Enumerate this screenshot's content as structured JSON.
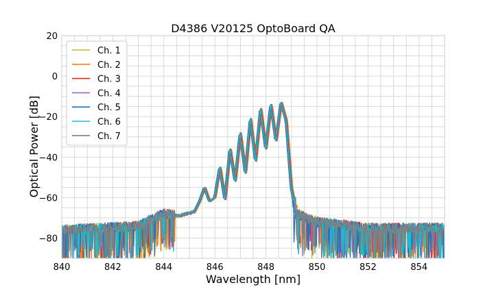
{
  "chart_data": {
    "type": "line",
    "title": "D4386 V20125 OptoBoard QA",
    "xlabel": "Wavelength [nm]",
    "ylabel": "Optical Power [dB]",
    "xlim": [
      840,
      855
    ],
    "ylim": [
      -90,
      20
    ],
    "xticks": [
      840,
      842,
      844,
      846,
      848,
      850,
      852,
      854
    ],
    "yticks": [
      -80,
      -60,
      -40,
      -20,
      0,
      20
    ],
    "grid": true,
    "legend_position": "top-left",
    "series": [
      {
        "name": "Ch. 1",
        "color": "#bcbd22",
        "shift": 0.0,
        "peak_offset": 0.0,
        "x": [
          840,
          843,
          844,
          844.6,
          845.2,
          845.4,
          845.6,
          845.8,
          846.0,
          846.2,
          846.4,
          846.6,
          846.8,
          847.0,
          847.2,
          847.4,
          847.6,
          847.8,
          848.0,
          848.2,
          848.4,
          848.6,
          848.8,
          849.0,
          849.2,
          850,
          852,
          855
        ],
        "y": [
          -76,
          -74,
          -68,
          -69,
          -67,
          -62,
          -55,
          -62,
          -60,
          -45,
          -61,
          -36,
          -52,
          -28,
          -48,
          -21,
          -42,
          -16,
          -36,
          -14,
          -32,
          -13,
          -22,
          -55,
          -68,
          -72,
          -75,
          -75
        ]
      },
      {
        "name": "Ch. 2",
        "color": "#ff7f0e",
        "shift": 0.05,
        "peak_offset": 0.5,
        "x": [
          840,
          843,
          844,
          844.6,
          845.2,
          845.4,
          845.6,
          845.8,
          846.0,
          846.2,
          846.4,
          846.6,
          846.8,
          847.0,
          847.2,
          847.4,
          847.6,
          847.8,
          848.0,
          848.2,
          848.4,
          848.6,
          848.8,
          849.0,
          849.2,
          850,
          852,
          855
        ],
        "y": [
          -76,
          -74,
          -68,
          -69,
          -67,
          -62,
          -55,
          -62,
          -60,
          -45,
          -61,
          -36,
          -52,
          -28,
          -48,
          -21,
          -42,
          -16,
          -36,
          -14,
          -32,
          -13,
          -22,
          -55,
          -68,
          -72,
          -75,
          -75
        ]
      },
      {
        "name": "Ch. 3",
        "color": "#d62728",
        "shift": 0.02,
        "peak_offset": 1.0,
        "x": [
          840,
          843,
          844,
          844.6,
          845.2,
          845.4,
          845.6,
          845.8,
          846.0,
          846.2,
          846.4,
          846.6,
          846.8,
          847.0,
          847.2,
          847.4,
          847.6,
          847.8,
          848.0,
          848.2,
          848.4,
          848.6,
          848.8,
          849.0,
          849.2,
          850,
          852,
          855
        ],
        "y": [
          -76,
          -74,
          -68,
          -69,
          -67,
          -62,
          -55,
          -62,
          -60,
          -45,
          -61,
          -36,
          -52,
          -28,
          -48,
          -21,
          -42,
          -16,
          -36,
          -14,
          -32,
          -13,
          -22,
          -55,
          -68,
          -72,
          -75,
          -75
        ]
      },
      {
        "name": "Ch. 4",
        "color": "#9467bd",
        "shift": -0.03,
        "peak_offset": 1.5,
        "x": [
          840,
          843,
          844,
          844.6,
          845.2,
          845.4,
          845.6,
          845.8,
          846.0,
          846.2,
          846.4,
          846.6,
          846.8,
          847.0,
          847.2,
          847.4,
          847.6,
          847.8,
          848.0,
          848.2,
          848.4,
          848.6,
          848.8,
          849.0,
          849.2,
          850,
          852,
          855
        ],
        "y": [
          -76,
          -74,
          -68,
          -69,
          -67,
          -62,
          -55,
          -62,
          -60,
          -45,
          -61,
          -36,
          -52,
          -28,
          -48,
          -21,
          -42,
          -16,
          -36,
          -14,
          -32,
          -13,
          -22,
          -55,
          -68,
          -72,
          -75,
          -75
        ]
      },
      {
        "name": "Ch. 5",
        "color": "#1f77b4",
        "shift": -0.05,
        "peak_offset": 0.8,
        "x": [
          840,
          843,
          844,
          844.6,
          845.2,
          845.4,
          845.6,
          845.8,
          846.0,
          846.2,
          846.4,
          846.6,
          846.8,
          847.0,
          847.2,
          847.4,
          847.6,
          847.8,
          848.0,
          848.2,
          848.4,
          848.6,
          848.8,
          849.0,
          849.2,
          850,
          852,
          855
        ],
        "y": [
          -76,
          -74,
          -68,
          -69,
          -67,
          -62,
          -55,
          -62,
          -60,
          -45,
          -61,
          -36,
          -52,
          -28,
          -48,
          -21,
          -42,
          -16,
          -36,
          -14,
          -32,
          -13,
          -22,
          -55,
          -68,
          -72,
          -75,
          -75
        ]
      },
      {
        "name": "Ch. 6",
        "color": "#17becf",
        "shift": -0.02,
        "peak_offset": 0.3,
        "x": [
          840,
          843,
          844,
          844.6,
          845.2,
          845.4,
          845.6,
          845.8,
          846.0,
          846.2,
          846.4,
          846.6,
          846.8,
          847.0,
          847.2,
          847.4,
          847.6,
          847.8,
          848.0,
          848.2,
          848.4,
          848.6,
          848.8,
          849.0,
          849.2,
          850,
          852,
          855
        ],
        "y": [
          -76,
          -74,
          -68,
          -69,
          -67,
          -62,
          -55,
          -62,
          -60,
          -45,
          -61,
          -36,
          -52,
          -28,
          -48,
          -21,
          -42,
          -16,
          -36,
          -14,
          -32,
          -13,
          -22,
          -55,
          -68,
          -72,
          -75,
          -75
        ]
      },
      {
        "name": "Ch. 7",
        "color": "#7f7f7f",
        "shift": 0.04,
        "peak_offset": 0.6,
        "x": [
          840,
          843,
          844,
          844.6,
          845.2,
          845.4,
          845.6,
          845.8,
          846.0,
          846.2,
          846.4,
          846.6,
          846.8,
          847.0,
          847.2,
          847.4,
          847.6,
          847.8,
          848.0,
          848.2,
          848.4,
          848.6,
          848.8,
          849.0,
          849.2,
          850,
          852,
          855
        ],
        "y": [
          -76,
          -74,
          -68,
          -69,
          -67,
          -62,
          -55,
          -62,
          -60,
          -45,
          -61,
          -36,
          -52,
          -28,
          -48,
          -21,
          -42,
          -16,
          -36,
          -14,
          -32,
          -13,
          -22,
          -55,
          -68,
          -72,
          -75,
          -75
        ]
      }
    ]
  }
}
